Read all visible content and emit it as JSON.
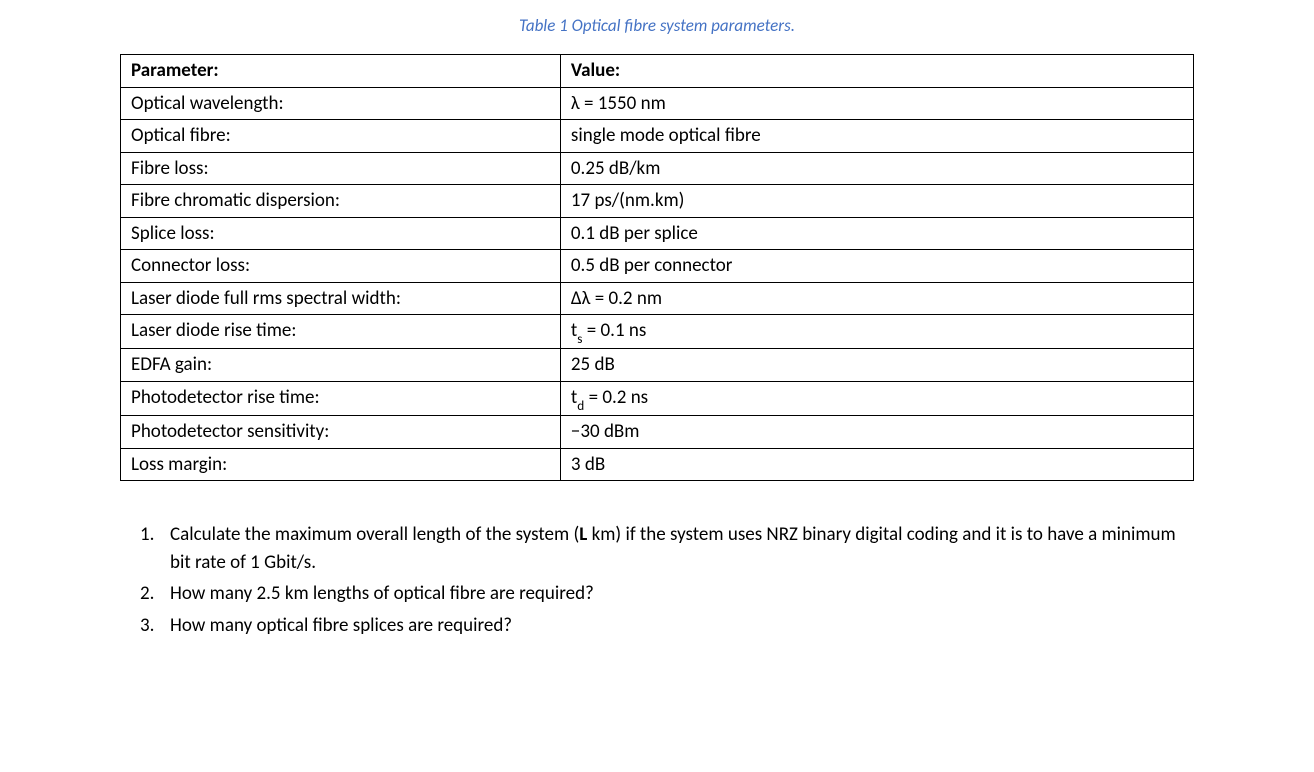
{
  "caption": "Table 1  Optical fibre system parameters.",
  "table": {
    "columns": [
      "Parameter:",
      "Value:"
    ],
    "rows": [
      {
        "param": "Optical wavelength:",
        "value_parts": [
          {
            "t": "λ = 1550 nm"
          }
        ]
      },
      {
        "param": "Optical fibre:",
        "value_parts": [
          {
            "t": "single mode optical fibre"
          }
        ]
      },
      {
        "param": "Fibre loss:",
        "value_parts": [
          {
            "t": "0.25 dB/km"
          }
        ]
      },
      {
        "param": "Fibre chromatic dispersion:",
        "value_parts": [
          {
            "t": "17 ps/(nm.km)"
          }
        ]
      },
      {
        "param": "Splice loss:",
        "value_parts": [
          {
            "t": "0.1 dB per splice"
          }
        ]
      },
      {
        "param": "Connector loss:",
        "value_parts": [
          {
            "t": "0.5 dB per connector"
          }
        ]
      },
      {
        "param": "Laser diode full rms spectral width:",
        "value_parts": [
          {
            "t": "Δλ = 0.2 nm"
          }
        ]
      },
      {
        "param": "Laser diode rise time:",
        "value_parts": [
          {
            "t": "t"
          },
          {
            "t": "s",
            "sub": true
          },
          {
            "t": " = 0.1 ns"
          }
        ]
      },
      {
        "param": "EDFA gain:",
        "value_parts": [
          {
            "t": "25 dB"
          }
        ]
      },
      {
        "param": "Photodetector rise time:",
        "value_parts": [
          {
            "t": "t"
          },
          {
            "t": "d",
            "sub": true
          },
          {
            "t": " = 0.2 ns"
          }
        ]
      },
      {
        "param": "Photodetector sensitivity:",
        "value_parts": [
          {
            "t": "−30 dBm"
          }
        ]
      },
      {
        "param": "Loss margin:",
        "value_parts": [
          {
            "t": "3 dB"
          }
        ]
      }
    ]
  },
  "questions": [
    {
      "parts": [
        {
          "t": "Calculate the maximum overall length of the system ("
        },
        {
          "t": "L",
          "bold": true
        },
        {
          "t": " km) if the system uses NRZ binary digital coding and it is to have a minimum bit rate of 1 Gbit/s."
        }
      ]
    },
    {
      "parts": [
        {
          "t": "How many 2.5 km lengths of optical fibre are required?"
        }
      ]
    },
    {
      "parts": [
        {
          "t": "How many optical fibre splices are required?"
        }
      ]
    }
  ],
  "style": {
    "caption_color": "#4472c4",
    "border_color": "#000000",
    "text_color": "#000000",
    "background_color": "#ffffff",
    "body_fontsize": 19,
    "caption_fontsize": 17
  }
}
